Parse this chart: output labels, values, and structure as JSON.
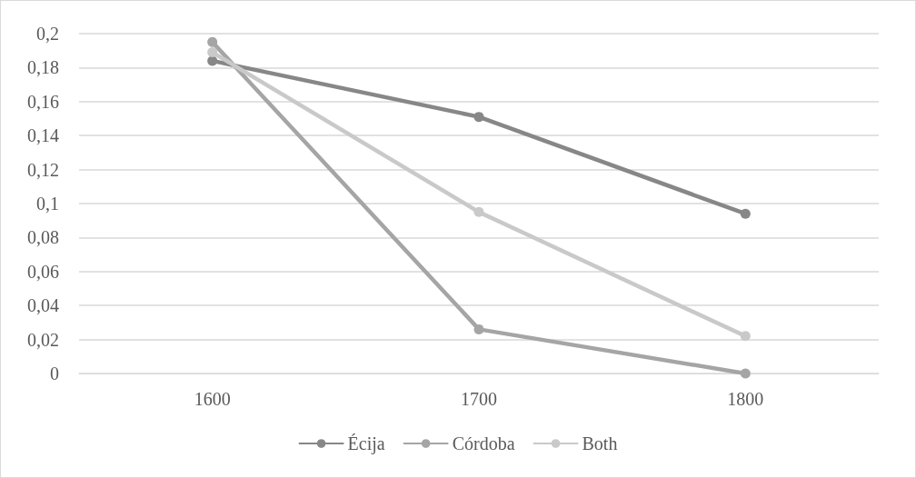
{
  "chart_data": {
    "type": "line",
    "categories": [
      "1600",
      "1700",
      "1800"
    ],
    "series": [
      {
        "name": "Écija",
        "color": "#878787",
        "values": [
          0.184,
          0.151,
          0.094
        ]
      },
      {
        "name": "Córdoba",
        "color": "#a5a5a5",
        "values": [
          0.195,
          0.026,
          0
        ]
      },
      {
        "name": "Both",
        "color": "#c9c9c9",
        "values": [
          0.189,
          0.095,
          0.022
        ]
      }
    ],
    "ylim": [
      0,
      0.2
    ],
    "yticks": [
      0,
      {
        "value": 0.02,
        "label": "0,02"
      },
      {
        "value": 0.04,
        "label": "0,04"
      },
      {
        "value": 0.06,
        "label": "0,06"
      },
      {
        "value": 0.08,
        "label": "0,08"
      },
      {
        "value": 0.1,
        "label": "0,1"
      },
      {
        "value": 0.12,
        "label": "0,12"
      },
      {
        "value": 0.14,
        "label": "0,14"
      },
      {
        "value": 0.16,
        "label": "0,16"
      },
      {
        "value": 0.18,
        "label": "0,18"
      },
      {
        "value": 0.2,
        "label": "0,2"
      }
    ],
    "grid": "y",
    "legend": "bottom",
    "marker": "circle",
    "line_style": "solid"
  }
}
